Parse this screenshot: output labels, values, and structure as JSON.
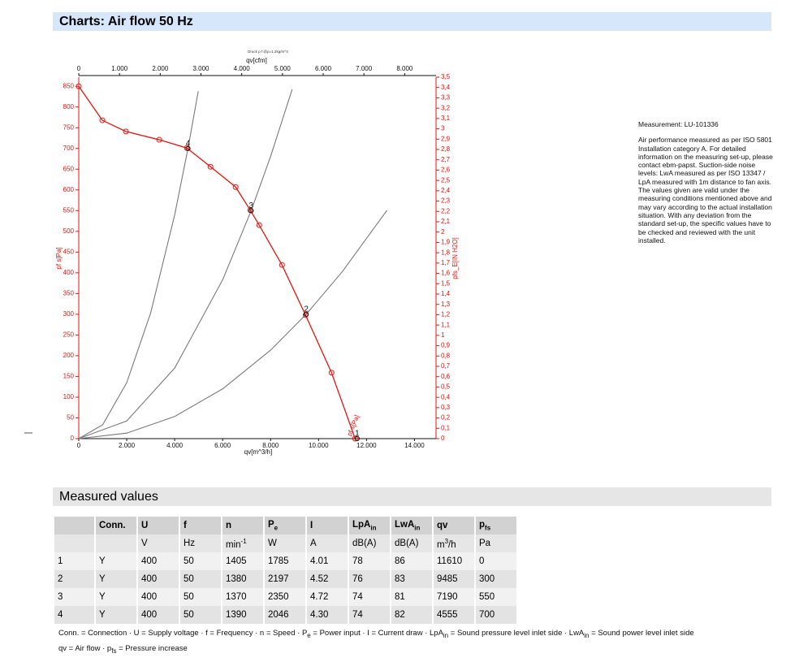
{
  "header": {
    "title": "Charts: Air flow 50 Hz"
  },
  "chart_data": {
    "type": "line",
    "title": "Druck p f @ρ=1.2kg/m^3",
    "x_label": "qv[m^3/h]",
    "x2_label": "qv[cfm]",
    "y_label": "pf s[Pa]",
    "y2_label": "pfs_E[IN H2O]",
    "xlim": [
      0,
      14900
    ],
    "x2lim": [
      0,
      8770
    ],
    "ylim": [
      0,
      872
    ],
    "y2lim": [
      0,
      3.5
    ],
    "xticks": [
      0,
      {
        "value": 2000,
        "label": "2.000"
      },
      {
        "value": 4000,
        "label": "4.000"
      },
      {
        "value": 6000,
        "label": "6.000"
      },
      {
        "value": 8000,
        "label": "8.000"
      },
      {
        "value": 10000,
        "label": "10.000"
      },
      {
        "value": 12000,
        "label": "12.000"
      },
      {
        "value": 14000,
        "label": "14.000"
      }
    ],
    "x2ticks": [
      0,
      {
        "value": 1000,
        "label": "1.000"
      },
      {
        "value": 2000,
        "label": "2.000"
      },
      {
        "value": 3000,
        "label": "3.000"
      },
      {
        "value": 4000,
        "label": "4.000"
      },
      {
        "value": 5000,
        "label": "5.000"
      },
      {
        "value": 6000,
        "label": "6.000"
      },
      {
        "value": 7000,
        "label": "7.000"
      },
      {
        "value": 8000,
        "label": "8.000"
      }
    ],
    "yticks": [
      0,
      50,
      100,
      150,
      200,
      250,
      300,
      350,
      400,
      450,
      500,
      550,
      600,
      650,
      700,
      750,
      800,
      850
    ],
    "y2ticks": [
      0,
      {
        "value": 0.1,
        "label": "0,1"
      },
      {
        "value": 0.2,
        "label": "0,2"
      },
      {
        "value": 0.3,
        "label": "0,3"
      },
      {
        "value": 0.4,
        "label": "0,4"
      },
      {
        "value": 0.5,
        "label": "0,5"
      },
      {
        "value": 0.6,
        "label": "0,6"
      },
      {
        "value": 0.7,
        "label": "0,7"
      },
      {
        "value": 0.8,
        "label": "0,8"
      },
      {
        "value": 0.9,
        "label": "0,9"
      },
      1,
      {
        "value": 1.1,
        "label": "1,1"
      },
      {
        "value": 1.2,
        "label": "1,2"
      },
      {
        "value": 1.3,
        "label": "1,3"
      },
      {
        "value": 1.4,
        "label": "1,4"
      },
      {
        "value": 1.5,
        "label": "1,5"
      },
      {
        "value": 1.6,
        "label": "1,6"
      },
      {
        "value": 1.7,
        "label": "1,7"
      },
      {
        "value": 1.8,
        "label": "1,8"
      },
      {
        "value": 1.9,
        "label": "1,9"
      },
      2,
      {
        "value": 2.1,
        "label": "2,1"
      },
      {
        "value": 2.2,
        "label": "2,2"
      },
      {
        "value": 2.3,
        "label": "2,3"
      },
      {
        "value": 2.4,
        "label": "2,4"
      },
      {
        "value": 2.5,
        "label": "2,5"
      },
      {
        "value": 2.6,
        "label": "2,6"
      },
      {
        "value": 2.7,
        "label": "2,7"
      },
      {
        "value": 2.8,
        "label": "2,8"
      },
      {
        "value": 2.9,
        "label": "2,9"
      },
      3,
      {
        "value": 3.1,
        "label": "3,1"
      },
      {
        "value": 3.2,
        "label": "3,2"
      },
      {
        "value": 3.3,
        "label": "3,3"
      },
      {
        "value": 3.4,
        "label": "3,4"
      },
      {
        "value": 3.5,
        "label": "3,5"
      }
    ],
    "series": [
      {
        "name": "pf s[Pa]",
        "color": "#e8140f",
        "markers": true,
        "x": [
          0,
          983,
          1966,
          3356,
          4508,
          5492,
          6542,
          7153,
          7525,
          8475,
          9458,
          10542,
          11525
        ],
        "values": [
          850,
          768,
          741,
          721,
          701,
          656,
          607,
          551,
          515,
          419,
          298,
          159,
          0
        ]
      },
      {
        "color": "#7a7a7a",
        "markers": false,
        "x": [
          0,
          1000,
          2000,
          3000,
          4000,
          4555,
          4983
        ],
        "values": [
          0,
          33.7,
          134.9,
          303.6,
          539.7,
          700,
          838
        ]
      },
      {
        "color": "#7a7a7a",
        "markers": false,
        "x": [
          0,
          2000,
          4000,
          6000,
          7190,
          8000,
          8900
        ],
        "values": [
          0,
          42.6,
          170.2,
          383,
          550,
          680.9,
          842.7
        ]
      },
      {
        "color": "#7a7a7a",
        "markers": false,
        "x": [
          0,
          2000,
          4000,
          6000,
          8000,
          9485,
          11000,
          12850
        ],
        "values": [
          0,
          13.3,
          53.4,
          120,
          213.4,
          300,
          403.5,
          550.6
        ]
      }
    ],
    "operating_points": {
      "labels": [
        "1",
        "2",
        "3",
        "4"
      ],
      "x": [
        11610,
        9485,
        7190,
        4555
      ],
      "values": [
        0,
        300,
        550,
        700
      ]
    }
  },
  "notes": {
    "measurement": "Measurement: LU-101336",
    "text": "Air performance measured as per ISO 5801 Installation category A. For detailed information on the measuring set-up, please contact ebm-papst. Suction-side noise levels: LwA measured as per ISO 13347 / LpA measured with 1m distance to fan axis. The values given are valid under the measuring conditions mentioned above and may vary according to the actual installation situation. With any deviation from the standard set-up, the specific values have to be checked and reviewed with the unit installed."
  },
  "section": {
    "title": "Measured values"
  },
  "table": {
    "header": [
      null,
      [
        {
          "text": "Conn."
        }
      ],
      [
        {
          "text": "U"
        }
      ],
      [
        {
          "text": "f"
        }
      ],
      [
        {
          "text": "n"
        }
      ],
      [
        {
          "text": "P",
          "sub": "e"
        }
      ],
      [
        {
          "text": "I"
        }
      ],
      [
        {
          "text": "LpA",
          "sub": "in"
        }
      ],
      [
        {
          "text": "LwA",
          "sub": "in"
        }
      ],
      [
        {
          "text": "qv"
        }
      ],
      [
        {
          "text": "p",
          "sub": "fs"
        }
      ]
    ],
    "units": [
      null,
      null,
      [
        {
          "text": "V"
        }
      ],
      [
        {
          "text": "Hz"
        }
      ],
      [
        {
          "text": "min",
          "sup": "-1"
        }
      ],
      [
        {
          "text": "W"
        }
      ],
      [
        {
          "text": "A"
        }
      ],
      [
        {
          "text": "dB(A)"
        }
      ],
      [
        {
          "text": "dB(A)"
        }
      ],
      [
        {
          "text": "m",
          "sup": "3"
        },
        {
          "text": "/h"
        }
      ],
      [
        {
          "text": "Pa"
        }
      ]
    ],
    "rows": [
      [
        "1",
        "Y",
        "400",
        "50",
        "1405",
        "1785",
        "4.01",
        "78",
        "86",
        "11610",
        "0"
      ],
      [
        "2",
        "Y",
        "400",
        "50",
        "1380",
        "2197",
        "4.52",
        "76",
        "83",
        "9485",
        "300"
      ],
      [
        "3",
        "Y",
        "400",
        "50",
        "1370",
        "2350",
        "4.72",
        "74",
        "81",
        "7190",
        "550"
      ],
      [
        "4",
        "Y",
        "400",
        "50",
        "1390",
        "2046",
        "4.30",
        "74",
        "82",
        "4555",
        "700"
      ]
    ]
  },
  "footnote": {
    "lines": [
      [
        {
          "text": "Conn. = Connection · U = Supply voltage · f = Frequency · n = Speed · P",
          "sub": "e"
        },
        {
          "text": " = Power input · I = Current draw · LpA",
          "sub": "in"
        },
        {
          "text": " = Sound pressure level inlet side · LwA",
          "sub": "in"
        },
        {
          "text": " = Sound power level inlet side"
        }
      ],
      [
        {
          "text": "qv = Air flow · p",
          "sub": "fs"
        },
        {
          "text": " = Pressure increase"
        }
      ]
    ]
  }
}
